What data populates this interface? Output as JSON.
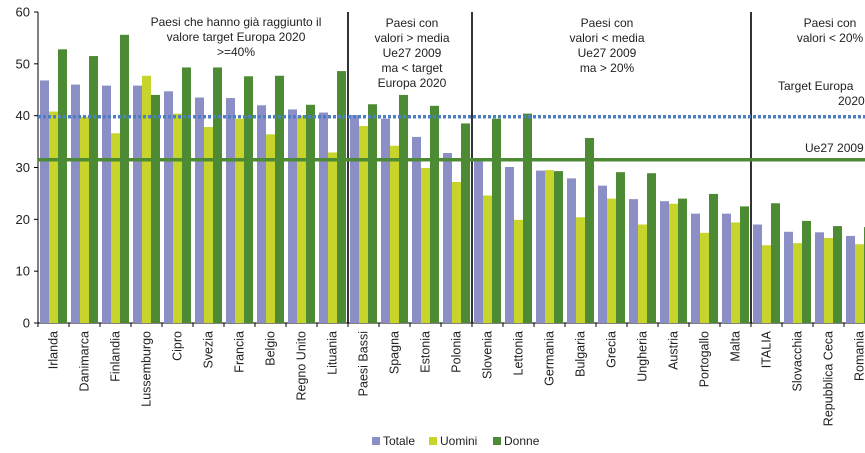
{
  "chart_data": {
    "type": "bar",
    "title": "",
    "xlabel": "",
    "ylabel": "",
    "ylim": [
      0,
      60
    ],
    "yticks": [
      "0",
      "10",
      "20",
      "30",
      "40",
      "50",
      "60"
    ],
    "grid": false,
    "legend_position": "bottom",
    "categories": [
      "Irlanda",
      "Danimarca",
      "Finlandia",
      "Lussemburgo",
      "Cipro",
      "Svezia",
      "Francia",
      "Belgio",
      "Regno Unito",
      "Lituania",
      "Paesi Bassi",
      "Spagna",
      "Estonia",
      "Polonia",
      "Slovenia",
      "Lettonia",
      "Germania",
      "Bulgaria",
      "Grecia",
      "Ungheria",
      "Austria",
      "Portogallo",
      "Malta",
      "ITALIA",
      "Slovacchia",
      "Repubblica Ceca",
      "Romania"
    ],
    "series": [
      {
        "name": "Totale",
        "color": "#8c8fc5",
        "values": [
          46.8,
          46.0,
          45.8,
          45.8,
          44.7,
          43.5,
          43.4,
          42.0,
          41.2,
          40.6,
          40.1,
          39.4,
          35.9,
          32.8,
          31.6,
          30.1,
          29.4,
          27.9,
          26.5,
          23.9,
          23.5,
          21.1,
          21.1,
          19.0,
          17.6,
          17.5,
          16.8
        ]
      },
      {
        "name": "Uomini",
        "color": "#c7d42b",
        "values": [
          40.8,
          39.8,
          36.6,
          47.7,
          40.4,
          37.8,
          39.4,
          36.4,
          40.0,
          32.9,
          38.0,
          34.2,
          29.9,
          27.2,
          24.6,
          19.9,
          29.5,
          20.4,
          24.0,
          19.0,
          23.0,
          17.4,
          19.4,
          15.0,
          15.4,
          16.4,
          15.2
        ]
      },
      {
        "name": "Donne",
        "color": "#4c8a34",
        "values": [
          52.8,
          51.5,
          55.6,
          44.0,
          49.3,
          49.3,
          47.6,
          47.7,
          42.1,
          48.6,
          42.2,
          44.0,
          41.9,
          38.5,
          39.4,
          40.4,
          29.3,
          35.7,
          29.1,
          28.9,
          24.0,
          24.9,
          22.5,
          23.1,
          19.7,
          18.7,
          18.5
        ]
      }
    ],
    "reference_lines": [
      {
        "label": "Target Europa 2020",
        "value": 39.8,
        "color": "#4f7fc3",
        "style": "dotted"
      },
      {
        "label": "Ue27 2009",
        "value": 31.5,
        "color": "#4c8a34",
        "style": "solid"
      }
    ],
    "group_annotations": [
      {
        "lines": [
          "Paesi che hanno già raggiunto il",
          "valore target Europa 2020",
          ">=40%"
        ]
      },
      {
        "lines": [
          "Paesi con",
          "valori > media",
          "Ue27 2009",
          "ma < target",
          "Europa 2020"
        ]
      },
      {
        "lines": [
          "Paesi con",
          "valori < media",
          "Ue27 2009",
          "ma > 20%"
        ]
      },
      {
        "lines": [
          "Paesi con",
          "valori < 20%"
        ]
      }
    ],
    "line_labels": [
      {
        "lines": [
          "Target Europa",
          "2020"
        ]
      },
      {
        "lines": [
          "Ue27 2009"
        ]
      }
    ]
  }
}
